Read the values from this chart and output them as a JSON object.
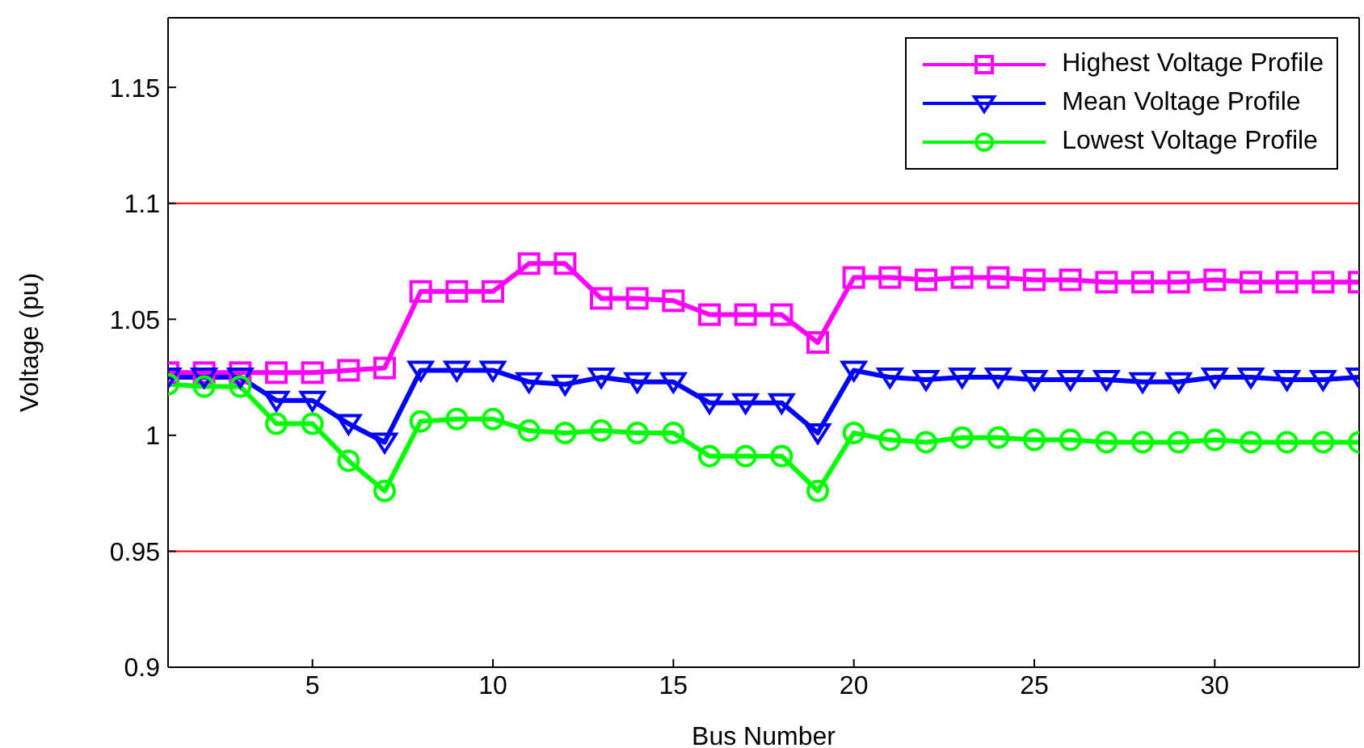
{
  "chart_data": {
    "type": "line",
    "xlabel": "Bus Number",
    "ylabel": "Voltage (pu)",
    "x": [
      1,
      2,
      3,
      4,
      5,
      6,
      7,
      8,
      9,
      10,
      11,
      12,
      13,
      14,
      15,
      16,
      17,
      18,
      19,
      20,
      21,
      22,
      23,
      24,
      25,
      26,
      27,
      28,
      29,
      30,
      31,
      32,
      33,
      34
    ],
    "xlim": [
      1,
      34
    ],
    "xticks": [
      5,
      10,
      15,
      20,
      25,
      30
    ],
    "ylim": [
      0.9,
      1.18
    ],
    "yticks": [
      0.9,
      0.95,
      1,
      1.05,
      1.1,
      1.15
    ],
    "grid": false,
    "legend": "top right",
    "line_style": "solid",
    "series": [
      {
        "name": "Highest Voltage Profile",
        "color": "#ff00ff",
        "marker": "square",
        "values": [
          1.027,
          1.027,
          1.027,
          1.027,
          1.027,
          1.028,
          1.029,
          1.062,
          1.062,
          1.062,
          1.074,
          1.074,
          1.059,
          1.059,
          1.058,
          1.052,
          1.052,
          1.052,
          1.04,
          1.068,
          1.068,
          1.067,
          1.068,
          1.068,
          1.067,
          1.067,
          1.066,
          1.066,
          1.066,
          1.067,
          1.066,
          1.066,
          1.066,
          1.066
        ]
      },
      {
        "name": "Mean Voltage Profile",
        "color": "#0000ff",
        "marker": "triangle",
        "values": [
          1.025,
          1.025,
          1.025,
          1.015,
          1.015,
          1.005,
          0.997,
          1.028,
          1.028,
          1.028,
          1.023,
          1.022,
          1.025,
          1.023,
          1.023,
          1.014,
          1.014,
          1.014,
          1.001,
          1.028,
          1.025,
          1.024,
          1.025,
          1.025,
          1.024,
          1.024,
          1.024,
          1.023,
          1.023,
          1.025,
          1.025,
          1.024,
          1.024,
          1.025
        ]
      },
      {
        "name": "Lowest Voltage Profile",
        "color": "#00ff00",
        "marker": "circle",
        "values": [
          1.022,
          1.021,
          1.021,
          1.005,
          1.005,
          0.989,
          0.976,
          1.006,
          1.007,
          1.007,
          1.002,
          1.001,
          1.002,
          1.001,
          1.001,
          0.991,
          0.991,
          0.991,
          0.976,
          1.001,
          0.998,
          0.997,
          0.999,
          0.999,
          0.998,
          0.998,
          0.997,
          0.997,
          0.997,
          0.998,
          0.997,
          0.997,
          0.997,
          0.997
        ]
      }
    ],
    "ref_lines": [
      {
        "axis": "y",
        "value": 1.1,
        "color": "#ff0000"
      },
      {
        "axis": "y",
        "value": 0.95,
        "color": "#ff0000"
      }
    ]
  }
}
